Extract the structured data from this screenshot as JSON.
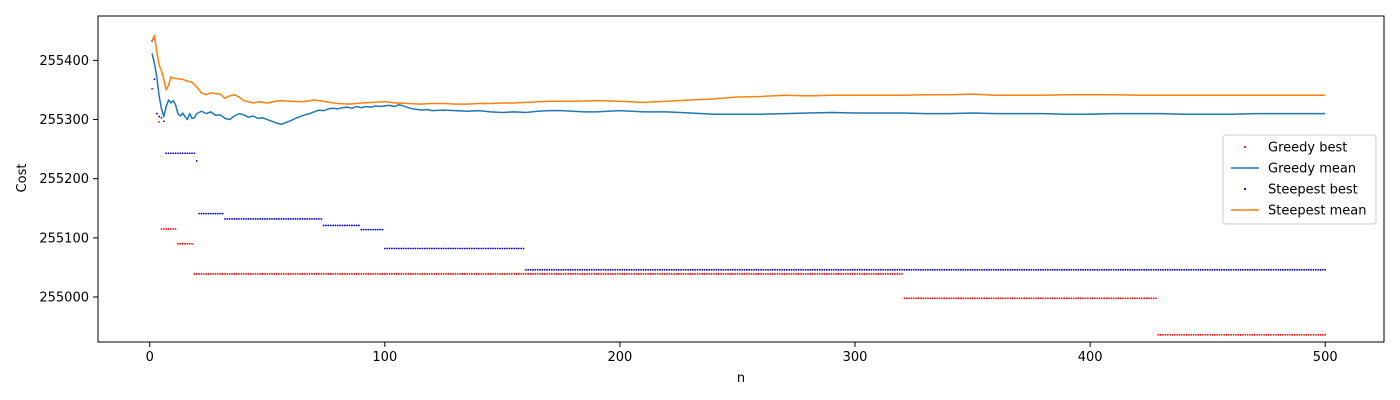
{
  "chart_data": {
    "type": "line",
    "title": "",
    "xlabel": "n",
    "ylabel": "Cost",
    "xlim": [
      -22,
      525
    ],
    "ylim": [
      254924,
      255475
    ],
    "xticks": [
      0,
      100,
      200,
      300,
      400,
      500
    ],
    "yticks": [
      255000,
      255100,
      255200,
      255300,
      255400
    ],
    "grid": false,
    "legend": {
      "placement": "center-right"
    },
    "n_points": 500,
    "series": [
      {
        "name": "Greedy best",
        "kind": "scatter",
        "color": "#ff0000",
        "steps": [
          {
            "from": 1,
            "to": 1,
            "y": 255352
          },
          {
            "from": 2,
            "to": 2,
            "y": 255435
          },
          {
            "from": 3,
            "to": 3,
            "y": 255310
          },
          {
            "from": 4,
            "to": 4,
            "y": 255296
          },
          {
            "from": 5,
            "to": 11,
            "y": 255115
          },
          {
            "from": 12,
            "to": 18,
            "y": 255090
          },
          {
            "from": 19,
            "to": 320,
            "y": 255039
          },
          {
            "from": 321,
            "to": 428,
            "y": 254998
          },
          {
            "from": 429,
            "to": 500,
            "y": 254936
          }
        ]
      },
      {
        "name": "Greedy mean",
        "kind": "line",
        "color": "#1f77b4",
        "points": [
          [
            1,
            255412
          ],
          [
            2,
            255395
          ],
          [
            3,
            255372
          ],
          [
            4,
            255340
          ],
          [
            5,
            255318
          ],
          [
            6,
            255305
          ],
          [
            7,
            255322
          ],
          [
            8,
            255333
          ],
          [
            9,
            255328
          ],
          [
            10,
            255332
          ],
          [
            11,
            255325
          ],
          [
            12,
            255310
          ],
          [
            13,
            255306
          ],
          [
            14,
            255311
          ],
          [
            15,
            255305
          ],
          [
            16,
            255300
          ],
          [
            17,
            255310
          ],
          [
            18,
            255302
          ],
          [
            19,
            255303
          ],
          [
            20,
            255310
          ],
          [
            22,
            255314
          ],
          [
            24,
            255310
          ],
          [
            26,
            255313
          ],
          [
            28,
            255307
          ],
          [
            30,
            255308
          ],
          [
            32,
            255302
          ],
          [
            34,
            255300
          ],
          [
            36,
            255306
          ],
          [
            38,
            255310
          ],
          [
            40,
            255308
          ],
          [
            42,
            255304
          ],
          [
            44,
            255306
          ],
          [
            46,
            255302
          ],
          [
            48,
            255303
          ],
          [
            50,
            255300
          ],
          [
            52,
            255297
          ],
          [
            54,
            255294
          ],
          [
            56,
            255292
          ],
          [
            58,
            255295
          ],
          [
            60,
            255298
          ],
          [
            62,
            255302
          ],
          [
            64,
            255305
          ],
          [
            66,
            255308
          ],
          [
            68,
            255310
          ],
          [
            70,
            255313
          ],
          [
            72,
            255316
          ],
          [
            74,
            255315
          ],
          [
            76,
            255318
          ],
          [
            78,
            255319
          ],
          [
            80,
            255318
          ],
          [
            82,
            255320
          ],
          [
            84,
            255321
          ],
          [
            86,
            255319
          ],
          [
            88,
            255322
          ],
          [
            90,
            255320
          ],
          [
            92,
            255322
          ],
          [
            94,
            255321
          ],
          [
            96,
            255323
          ],
          [
            98,
            255322
          ],
          [
            100,
            255323
          ],
          [
            102,
            255324
          ],
          [
            104,
            255322
          ],
          [
            106,
            255325
          ],
          [
            108,
            255323
          ],
          [
            110,
            255320
          ],
          [
            112,
            255318
          ],
          [
            114,
            255317
          ],
          [
            116,
            255316
          ],
          [
            118,
            255317
          ],
          [
            120,
            255315
          ],
          [
            125,
            255316
          ],
          [
            130,
            255315
          ],
          [
            135,
            255314
          ],
          [
            140,
            255315
          ],
          [
            145,
            255313
          ],
          [
            150,
            255312
          ],
          [
            155,
            255313
          ],
          [
            160,
            255312
          ],
          [
            165,
            255314
          ],
          [
            170,
            255315
          ],
          [
            175,
            255315
          ],
          [
            180,
            255314
          ],
          [
            185,
            255313
          ],
          [
            190,
            255313
          ],
          [
            195,
            255314
          ],
          [
            200,
            255315
          ],
          [
            210,
            255313
          ],
          [
            220,
            255313
          ],
          [
            230,
            255311
          ],
          [
            240,
            255309
          ],
          [
            250,
            255309
          ],
          [
            260,
            255309
          ],
          [
            270,
            255310
          ],
          [
            280,
            255311
          ],
          [
            290,
            255312
          ],
          [
            300,
            255311
          ],
          [
            310,
            255311
          ],
          [
            320,
            255311
          ],
          [
            330,
            255310
          ],
          [
            340,
            255310
          ],
          [
            350,
            255311
          ],
          [
            360,
            255310
          ],
          [
            370,
            255310
          ],
          [
            380,
            255310
          ],
          [
            390,
            255309
          ],
          [
            400,
            255309
          ],
          [
            410,
            255310
          ],
          [
            420,
            255310
          ],
          [
            430,
            255310
          ],
          [
            440,
            255309
          ],
          [
            450,
            255309
          ],
          [
            460,
            255309
          ],
          [
            470,
            255310
          ],
          [
            480,
            255310
          ],
          [
            490,
            255310
          ],
          [
            500,
            255310
          ]
        ]
      },
      {
        "name": "Steepest best",
        "kind": "scatter",
        "color": "#0000cc",
        "steps": [
          {
            "from": 1,
            "to": 1,
            "y": 255433
          },
          {
            "from": 2,
            "to": 2,
            "y": 255368
          },
          {
            "from": 3,
            "to": 3,
            "y": 255310
          },
          {
            "from": 4,
            "to": 4,
            "y": 255305
          },
          {
            "from": 5,
            "to": 5,
            "y": 255303
          },
          {
            "from": 6,
            "to": 6,
            "y": 255297
          },
          {
            "from": 7,
            "to": 19,
            "y": 255243
          },
          {
            "from": 20,
            "to": 20,
            "y": 255230
          },
          {
            "from": 21,
            "to": 31,
            "y": 255141
          },
          {
            "from": 32,
            "to": 73,
            "y": 255132
          },
          {
            "from": 74,
            "to": 89,
            "y": 255121
          },
          {
            "from": 90,
            "to": 99,
            "y": 255114
          },
          {
            "from": 100,
            "to": 159,
            "y": 255082
          },
          {
            "from": 160,
            "to": 500,
            "y": 255046
          }
        ]
      },
      {
        "name": "Steepest mean",
        "kind": "line",
        "color": "#ff7f0e",
        "points": [
          [
            1,
            255433
          ],
          [
            2,
            255442
          ],
          [
            3,
            255415
          ],
          [
            4,
            255392
          ],
          [
            5,
            255382
          ],
          [
            6,
            255368
          ],
          [
            7,
            255350
          ],
          [
            8,
            255358
          ],
          [
            9,
            255372
          ],
          [
            10,
            255370
          ],
          [
            12,
            255369
          ],
          [
            14,
            255368
          ],
          [
            16,
            255365
          ],
          [
            18,
            255363
          ],
          [
            20,
            255355
          ],
          [
            22,
            255345
          ],
          [
            24,
            255342
          ],
          [
            26,
            255345
          ],
          [
            28,
            255344
          ],
          [
            30,
            255343
          ],
          [
            32,
            255336
          ],
          [
            34,
            255340
          ],
          [
            36,
            255342
          ],
          [
            38,
            255338
          ],
          [
            40,
            255332
          ],
          [
            42,
            255330
          ],
          [
            44,
            255328
          ],
          [
            46,
            255330
          ],
          [
            48,
            255329
          ],
          [
            50,
            255328
          ],
          [
            55,
            255332
          ],
          [
            60,
            255331
          ],
          [
            65,
            255330
          ],
          [
            70,
            255333
          ],
          [
            75,
            255330
          ],
          [
            80,
            255327
          ],
          [
            85,
            255326
          ],
          [
            90,
            255328
          ],
          [
            95,
            255329
          ],
          [
            100,
            255330
          ],
          [
            105,
            255328
          ],
          [
            110,
            255327
          ],
          [
            115,
            255326
          ],
          [
            120,
            255327
          ],
          [
            125,
            255327
          ],
          [
            130,
            255326
          ],
          [
            135,
            255326
          ],
          [
            140,
            255327
          ],
          [
            145,
            255327
          ],
          [
            150,
            255328
          ],
          [
            155,
            255328
          ],
          [
            160,
            255329
          ],
          [
            170,
            255331
          ],
          [
            180,
            255331
          ],
          [
            190,
            255332
          ],
          [
            200,
            255331
          ],
          [
            210,
            255329
          ],
          [
            220,
            255331
          ],
          [
            230,
            255333
          ],
          [
            240,
            255335
          ],
          [
            250,
            255338
          ],
          [
            260,
            255339
          ],
          [
            270,
            255341
          ],
          [
            280,
            255340
          ],
          [
            290,
            255341
          ],
          [
            300,
            255341
          ],
          [
            310,
            255341
          ],
          [
            320,
            255341
          ],
          [
            330,
            255342
          ],
          [
            340,
            255342
          ],
          [
            350,
            255343
          ],
          [
            360,
            255341
          ],
          [
            370,
            255341
          ],
          [
            380,
            255341
          ],
          [
            390,
            255342
          ],
          [
            400,
            255342
          ],
          [
            410,
            255342
          ],
          [
            420,
            255341
          ],
          [
            430,
            255341
          ],
          [
            440,
            255341
          ],
          [
            450,
            255341
          ],
          [
            460,
            255341
          ],
          [
            470,
            255341
          ],
          [
            480,
            255341
          ],
          [
            490,
            255341
          ],
          [
            500,
            255341
          ]
        ]
      }
    ]
  }
}
